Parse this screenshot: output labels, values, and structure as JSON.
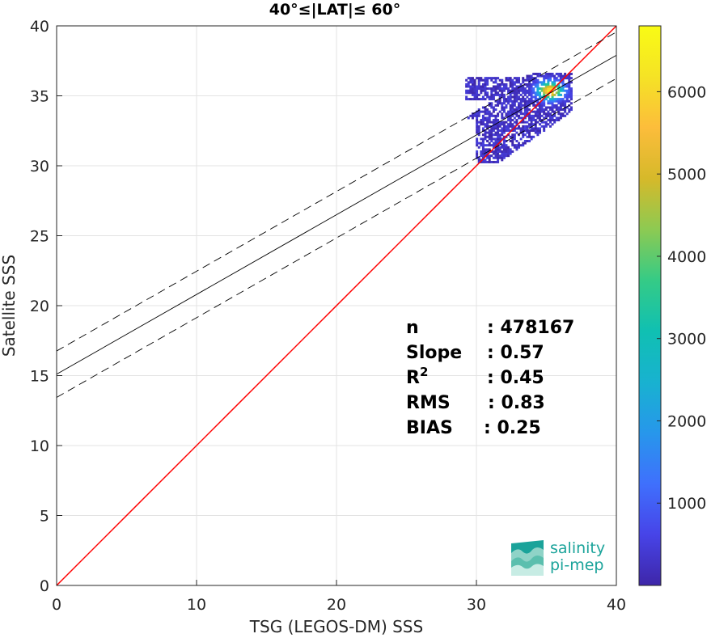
{
  "chart_data": {
    "type": "heatmap",
    "title": "40°≤|LAT|≤ 60°",
    "xlabel": "TSG (LEGOS-DM) SSS",
    "ylabel": "Satellite SSS",
    "xlim": [
      0,
      40
    ],
    "ylim": [
      0,
      40
    ],
    "x_ticks": [
      "0",
      "10",
      "20",
      "30",
      "40"
    ],
    "y_ticks": [
      "0",
      "5",
      "10",
      "15",
      "20",
      "25",
      "30",
      "35",
      "40"
    ],
    "grid": true,
    "reference_line": {
      "color": "#ff0000",
      "from": [
        0,
        0
      ],
      "to": [
        40,
        40
      ]
    },
    "regression_line": {
      "intercept": 15.1,
      "slope": 0.57,
      "color": "#000000"
    },
    "confidence_band": {
      "offset": 1.66,
      "style": "dashed",
      "color": "#000000"
    },
    "density_range_x": [
      29.2,
      36.7
    ],
    "density_range_y": [
      30.2,
      36.6
    ],
    "density_peak": [
      35.2,
      35.3
    ],
    "colorbar": {
      "min": 0,
      "max": 6800,
      "ticks": [
        "1000",
        "2000",
        "3000",
        "4000",
        "5000",
        "6000"
      ],
      "colormap": [
        "#3e26a8",
        "#4744e8",
        "#3f70fd",
        "#2797eb",
        "#18b2d0",
        "#10c0b2",
        "#35cb86",
        "#8dca52",
        "#d6b92a",
        "#fcbd3b",
        "#f5e325",
        "#f9fb15"
      ]
    },
    "stats": [
      {
        "label": "n",
        "value": ": 478167"
      },
      {
        "label": "Slope",
        "value": ": 0.57"
      },
      {
        "label": "R",
        "sup": "2",
        "value": ": 0.45"
      },
      {
        "label": "RMS",
        "value": ": 0.83"
      },
      {
        "label": "BIAS",
        "value": ": 0.25"
      }
    ]
  },
  "logo": {
    "line1": "salinity",
    "line2": "pi-mep"
  }
}
